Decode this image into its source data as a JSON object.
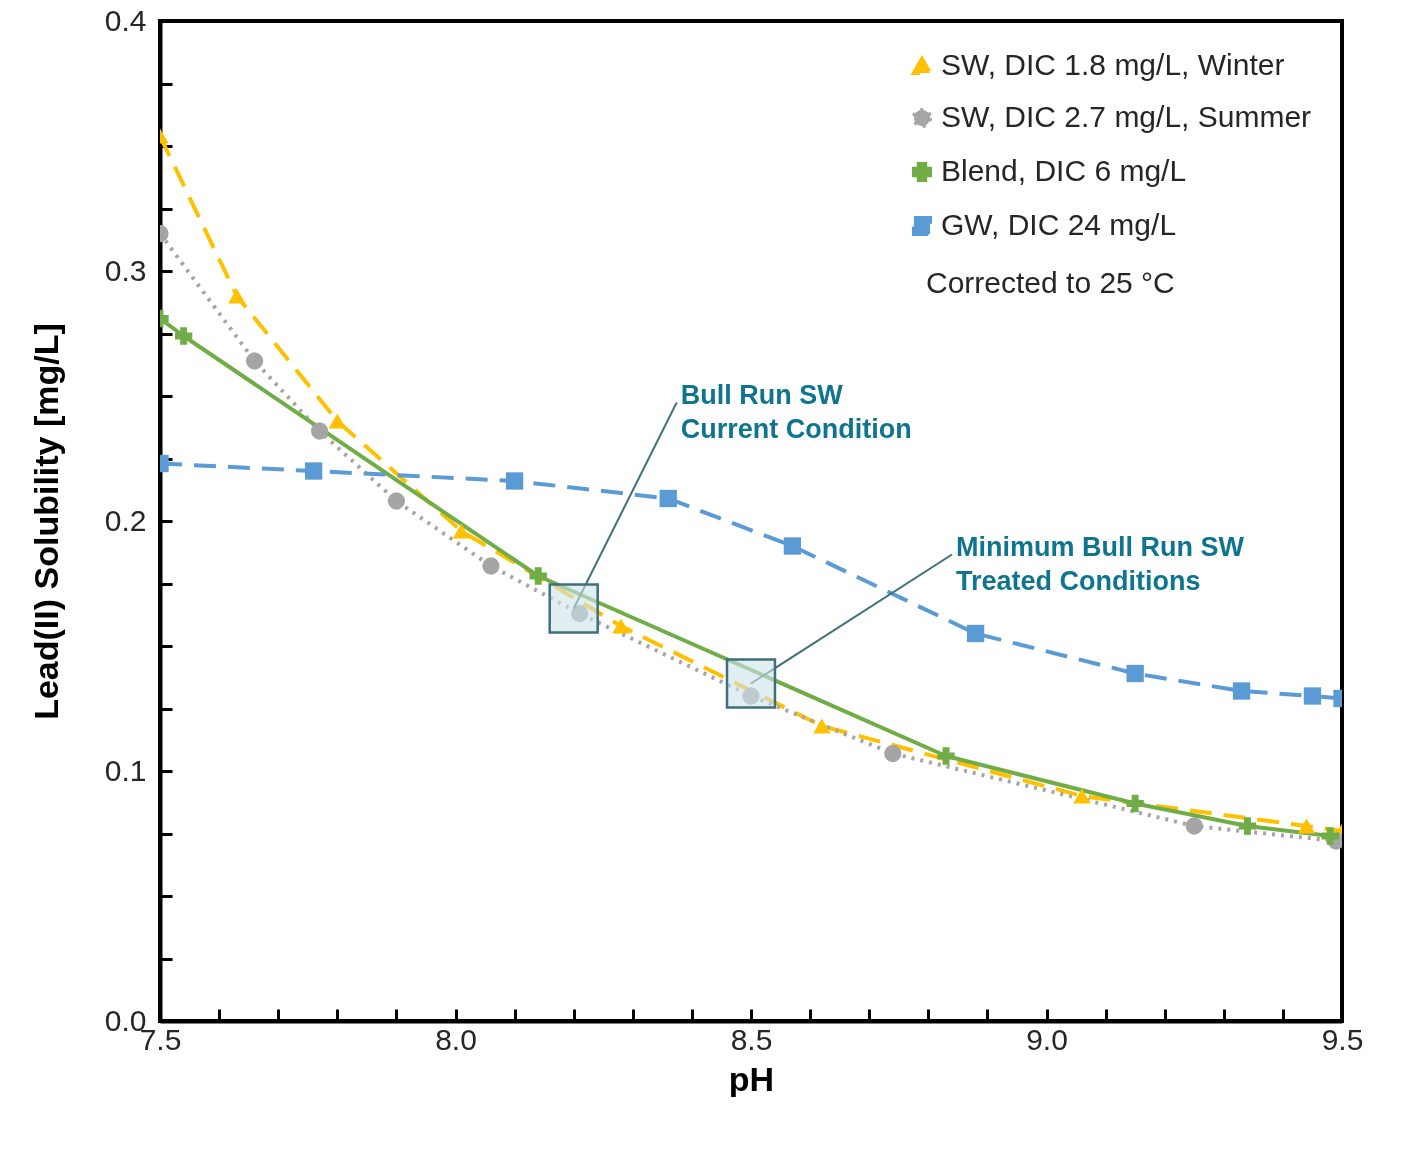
{
  "chart_data": {
    "type": "line",
    "xlabel": "pH",
    "ylabel": "Lead(II) Solubility [mg/L]",
    "xlim": [
      7.5,
      9.5
    ],
    "ylim": [
      0,
      0.4
    ],
    "xticks": [
      7.5,
      {
        "value": 7.6,
        "label": null
      },
      {
        "value": 7.7,
        "label": null
      },
      {
        "value": 7.8,
        "label": null
      },
      {
        "value": 7.9,
        "label": null
      },
      {
        "value": 8,
        "label": "8.0"
      },
      {
        "value": 8.1,
        "label": null
      },
      {
        "value": 8.2,
        "label": null
      },
      {
        "value": 8.3,
        "label": null
      },
      {
        "value": 8.4,
        "label": null
      },
      8.5,
      {
        "value": 8.6,
        "label": null
      },
      {
        "value": 8.7,
        "label": null
      },
      {
        "value": 8.8,
        "label": null
      },
      {
        "value": 8.9,
        "label": null
      },
      {
        "value": 9,
        "label": "9.0"
      },
      {
        "value": 9.1,
        "label": null
      },
      {
        "value": 9.2,
        "label": null
      },
      {
        "value": 9.3,
        "label": null
      },
      {
        "value": 9.4,
        "label": null
      },
      9.5
    ],
    "yticks": [
      {
        "value": 0,
        "label": "0.0"
      },
      {
        "value": 0.025,
        "label": null
      },
      {
        "value": 0.05,
        "label": null
      },
      {
        "value": 0.075,
        "label": null
      },
      0.1,
      {
        "value": 0.125,
        "label": null
      },
      {
        "value": 0.15,
        "label": null
      },
      {
        "value": 0.175,
        "label": null
      },
      0.2,
      {
        "value": 0.225,
        "label": null
      },
      {
        "value": 0.25,
        "label": null
      },
      {
        "value": 0.275,
        "label": null
      },
      0.3,
      {
        "value": 0.325,
        "label": null
      },
      {
        "value": 0.35,
        "label": null
      },
      {
        "value": 0.375,
        "label": null
      },
      0.4
    ],
    "legend": "top right",
    "grid": false,
    "series": [
      {
        "name": "SW, DIC 1.8 mg/L, Winter",
        "color": "#ffc000",
        "marker": "triangle",
        "line_style": "dashed",
        "x": [
          7.5,
          7.63,
          7.8,
          8.01,
          8.28,
          8.62,
          9.06,
          9.44,
          9.5
        ],
        "values": [
          0.354,
          0.29,
          0.24,
          0.196,
          0.158,
          0.118,
          0.09,
          0.078,
          0.076
        ]
      },
      {
        "name": "SW, DIC 2.7 mg/L, Summer",
        "color": "#a5a5a5",
        "marker": "circle",
        "line_style": "dotted",
        "x": [
          7.5,
          7.66,
          7.77,
          7.9,
          8.06,
          8.21,
          8.5,
          8.74,
          9.25,
          9.49
        ],
        "values": [
          0.315,
          0.264,
          0.236,
          0.208,
          0.182,
          0.163,
          0.13,
          0.107,
          0.078,
          0.072
        ]
      },
      {
        "name": "Blend, DIC 6 mg/L",
        "color": "#70ad47",
        "marker": "cross",
        "line_style": "solid",
        "x": [
          7.5,
          7.54,
          8.14,
          8.83,
          9.15,
          9.34,
          9.48
        ],
        "values": [
          0.281,
          0.274,
          0.178,
          0.106,
          0.087,
          0.078,
          0.074
        ]
      },
      {
        "name": "GW, DIC 24 mg/L",
        "color": "#5b9bd5",
        "marker": "square",
        "line_style": "dashed",
        "x": [
          7.5,
          7.76,
          8.1,
          8.36,
          8.57,
          8.88,
          9.15,
          9.33,
          9.45,
          9.5
        ],
        "values": [
          0.223,
          0.22,
          0.216,
          0.209,
          0.19,
          0.155,
          0.139,
          0.132,
          0.13,
          0.129
        ]
      }
    ],
    "annotations": [
      {
        "text": "Bull Run SW\nCurrent Condition",
        "x": 8.2,
        "y": 0.165
      },
      {
        "text": "Minimum Bull Run SW\nTreated Conditions",
        "x": 8.5,
        "y": 0.135
      },
      "Corrected to 25 °C"
    ]
  }
}
